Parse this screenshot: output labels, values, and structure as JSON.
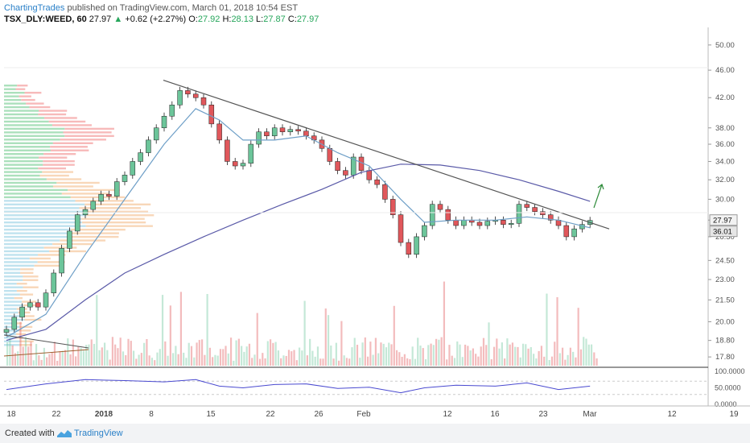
{
  "header": {
    "author": "ChartingTrades",
    "published": "published on TradingView.com, March 01, 2018 10:54 EST",
    "symbol": "TSX_DLY:WEED, 60",
    "last": "27.97",
    "arrow": "▲",
    "change": "+0.62 (+2.27%)",
    "o_label": "O:",
    "o_value": "27.92",
    "h_label": "H:",
    "h_value": "28.13",
    "l_label": "L:",
    "l_value": "27.87",
    "c_label": "C:",
    "c_value": "27.97"
  },
  "footer": {
    "created_with": "Created with",
    "brand": "TradingView"
  },
  "colors": {
    "up": "#6cc59a",
    "down": "#e0575b",
    "ma_fast": "#6e9fc7",
    "ma_slow": "#5a5aa8",
    "trend": "#555555",
    "rsi": "#4a4ad0",
    "arrow": "#2e8b3a"
  },
  "chart_data": {
    "type": "candlestick",
    "price_axis": {
      "scale": "log",
      "ticks": [
        "50.00",
        "46.00",
        "42.00",
        "38.00",
        "36.00",
        "34.00",
        "32.00",
        "30.00",
        "28.00",
        "26.50",
        "24.50",
        "23.00",
        "21.50",
        "20.00",
        "18.80",
        "17.80"
      ]
    },
    "price_labels": {
      "current": "27.97",
      "ma_value": "36.01"
    },
    "time_axis": {
      "ticks": [
        "18",
        "22",
        "2018",
        "8",
        "15",
        "22",
        "26",
        "Feb",
        "12",
        "16",
        "23",
        "Mar",
        "12",
        "19"
      ]
    },
    "rsi_axis": {
      "ticks": [
        "100.0000",
        "50.0000",
        "0.0000"
      ],
      "current": 55
    },
    "trendline": {
      "from": [
        "Jan 10",
        44.5
      ],
      "to": [
        "Mar 1",
        27.2
      ]
    },
    "target_arrow": "up",
    "price_path": [
      [
        0,
        19.5
      ],
      [
        1,
        20.3
      ],
      [
        2,
        21.0
      ],
      [
        3,
        21.3
      ],
      [
        4,
        21.0
      ],
      [
        5,
        22.0
      ],
      [
        6,
        23.5
      ],
      [
        7,
        25.5
      ],
      [
        8,
        27.0
      ],
      [
        9,
        28.5
      ],
      [
        10,
        29.0
      ],
      [
        11,
        29.8
      ],
      [
        12,
        30.5
      ],
      [
        13,
        30.3
      ],
      [
        14,
        31.8
      ],
      [
        15,
        32.5
      ],
      [
        16,
        34.0
      ],
      [
        17,
        35.0
      ],
      [
        18,
        36.5
      ],
      [
        19,
        38.0
      ],
      [
        20,
        39.5
      ],
      [
        21,
        41.0
      ],
      [
        22,
        43.0
      ],
      [
        23,
        42.5
      ],
      [
        24,
        42.0
      ],
      [
        25,
        41.0
      ],
      [
        26,
        38.5
      ],
      [
        27,
        36.5
      ],
      [
        28,
        34.0
      ],
      [
        29,
        33.5
      ],
      [
        30,
        33.8
      ],
      [
        31,
        36.0
      ],
      [
        32,
        37.5
      ],
      [
        33,
        37.0
      ],
      [
        34,
        38.0
      ],
      [
        35,
        37.5
      ],
      [
        36,
        37.8
      ],
      [
        37,
        37.6
      ],
      [
        38,
        37.0
      ],
      [
        39,
        36.5
      ],
      [
        40,
        35.5
      ],
      [
        41,
        34.0
      ],
      [
        42,
        33.0
      ],
      [
        43,
        32.5
      ],
      [
        44,
        34.5
      ],
      [
        45,
        33.0
      ],
      [
        46,
        32.0
      ],
      [
        47,
        31.5
      ],
      [
        48,
        30.0
      ],
      [
        49,
        28.5
      ],
      [
        50,
        26.0
      ],
      [
        51,
        25.0
      ],
      [
        52,
        26.5
      ],
      [
        53,
        27.5
      ],
      [
        54,
        29.5
      ],
      [
        55,
        29.0
      ],
      [
        56,
        28.0
      ],
      [
        57,
        27.5
      ],
      [
        58,
        28.0
      ],
      [
        59,
        27.8
      ],
      [
        60,
        27.5
      ],
      [
        61,
        27.9
      ],
      [
        62,
        28.0
      ],
      [
        63,
        27.6
      ],
      [
        64,
        27.7
      ],
      [
        65,
        29.5
      ],
      [
        66,
        29.2
      ],
      [
        67,
        28.8
      ],
      [
        68,
        28.5
      ],
      [
        69,
        28.0
      ],
      [
        70,
        27.5
      ],
      [
        71,
        26.5
      ],
      [
        72,
        27.2
      ],
      [
        73,
        27.6
      ],
      [
        74,
        27.97
      ]
    ],
    "ma_fast_path": [
      [
        0,
        19.0
      ],
      [
        5,
        20.5
      ],
      [
        10,
        25.0
      ],
      [
        15,
        30.0
      ],
      [
        20,
        36.0
      ],
      [
        24,
        40.5
      ],
      [
        27,
        39.0
      ],
      [
        30,
        36.5
      ],
      [
        34,
        36.5
      ],
      [
        38,
        37.0
      ],
      [
        42,
        35.0
      ],
      [
        46,
        33.5
      ],
      [
        50,
        30.0
      ],
      [
        53,
        27.8
      ],
      [
        57,
        28.0
      ],
      [
        62,
        28.0
      ],
      [
        66,
        28.3
      ],
      [
        70,
        28.0
      ],
      [
        74,
        27.3
      ]
    ],
    "ma_slow_path": [
      [
        0,
        18.8
      ],
      [
        5,
        19.5
      ],
      [
        10,
        21.5
      ],
      [
        15,
        23.5
      ],
      [
        20,
        25.0
      ],
      [
        25,
        26.5
      ],
      [
        30,
        28.0
      ],
      [
        35,
        29.5
      ],
      [
        40,
        31.0
      ],
      [
        45,
        32.8
      ],
      [
        50,
        33.7
      ],
      [
        55,
        33.6
      ],
      [
        60,
        33.0
      ],
      [
        65,
        32.0
      ],
      [
        70,
        30.8
      ],
      [
        74,
        29.8
      ]
    ],
    "rsi_path": [
      [
        0,
        45
      ],
      [
        5,
        62
      ],
      [
        10,
        75
      ],
      [
        15,
        72
      ],
      [
        20,
        68
      ],
      [
        24,
        75
      ],
      [
        27,
        55
      ],
      [
        30,
        50
      ],
      [
        34,
        60
      ],
      [
        38,
        62
      ],
      [
        42,
        48
      ],
      [
        46,
        52
      ],
      [
        50,
        35
      ],
      [
        53,
        50
      ],
      [
        57,
        58
      ],
      [
        62,
        55
      ],
      [
        66,
        65
      ],
      [
        70,
        45
      ],
      [
        74,
        55
      ]
    ]
  }
}
